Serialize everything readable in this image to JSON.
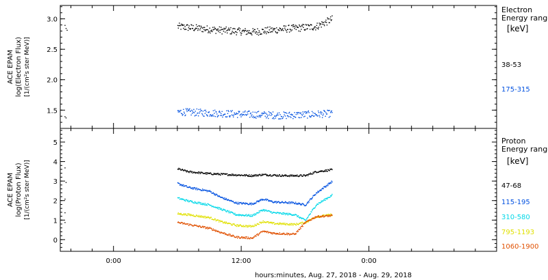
{
  "chart_data": [
    {
      "type": "scatter",
      "ylabel_lines": [
        "ACE EPAM",
        "log(Electron Flux)",
        "[1/(cm²s ster MeV)]"
      ],
      "ylim": [
        1.2,
        3.22
      ],
      "yticks": [
        "1.5",
        "2.0",
        "2.5",
        "3.0"
      ],
      "ytick_values": [
        1.5,
        2.0,
        2.5,
        3.0
      ],
      "legend_title": [
        "Electron",
        "Energy ranges",
        "[keV]"
      ],
      "series": [
        {
          "name": "38-53",
          "color": "#000000",
          "base": 2.85,
          "jitter": 0.06,
          "profile": [
            [
              6.0,
              2.88
            ],
            [
              10.0,
              2.82
            ],
            [
              13.0,
              2.79
            ],
            [
              16.0,
              2.84
            ],
            [
              19.0,
              2.88
            ],
            [
              20.5,
              3.0
            ]
          ]
        },
        {
          "name": "175-315",
          "color": "#0050e0",
          "base": 1.45,
          "jitter": 0.06,
          "profile": [
            [
              6.0,
              1.48
            ],
            [
              12.0,
              1.44
            ],
            [
              16.0,
              1.42
            ],
            [
              20.5,
              1.45
            ]
          ]
        }
      ]
    },
    {
      "type": "scatter",
      "ylabel_lines": [
        "ACE EPAM",
        "log(Proton Flux)",
        "[1/(cm²s ster MeV)]"
      ],
      "ylim": [
        -0.6,
        5.7
      ],
      "yticks": [
        "0",
        "1",
        "2",
        "3",
        "4",
        "5"
      ],
      "ytick_values": [
        0,
        1,
        2,
        3,
        4,
        5
      ],
      "legend_title": [
        "Proton",
        "Energy ranges",
        "[keV]"
      ],
      "series": [
        {
          "name": "47-68",
          "color": "#000000",
          "jitter": 0.05,
          "profile": [
            [
              6.0,
              3.65
            ],
            [
              7.0,
              3.5
            ],
            [
              9.0,
              3.4
            ],
            [
              13.0,
              3.3
            ],
            [
              14.0,
              3.35
            ],
            [
              16.0,
              3.3
            ],
            [
              18.0,
              3.3
            ],
            [
              19.0,
              3.5
            ],
            [
              20.5,
              3.6
            ]
          ]
        },
        {
          "name": "115-195",
          "color": "#0050e0",
          "jitter": 0.05,
          "profile": [
            [
              6.0,
              2.9
            ],
            [
              7.0,
              2.7
            ],
            [
              9.0,
              2.5
            ],
            [
              10.0,
              2.2
            ],
            [
              11.5,
              1.9
            ],
            [
              13.0,
              1.85
            ],
            [
              14.0,
              2.1
            ],
            [
              15.0,
              1.95
            ],
            [
              17.0,
              1.9
            ],
            [
              18.0,
              1.8
            ],
            [
              19.0,
              2.4
            ],
            [
              20.5,
              3.0
            ]
          ]
        },
        {
          "name": "310-580",
          "color": "#00d8e8",
          "jitter": 0.05,
          "profile": [
            [
              6.0,
              2.15
            ],
            [
              7.0,
              2.0
            ],
            [
              9.0,
              1.8
            ],
            [
              10.0,
              1.6
            ],
            [
              11.5,
              1.3
            ],
            [
              13.0,
              1.25
            ],
            [
              14.0,
              1.55
            ],
            [
              15.0,
              1.4
            ],
            [
              17.0,
              1.3
            ],
            [
              18.0,
              1.0
            ],
            [
              19.0,
              1.8
            ],
            [
              20.5,
              2.3
            ]
          ]
        },
        {
          "name": "795-1193",
          "color": "#e0e000",
          "jitter": 0.05,
          "profile": [
            [
              6.0,
              1.35
            ],
            [
              7.0,
              1.3
            ],
            [
              9.0,
              1.15
            ],
            [
              10.0,
              0.95
            ],
            [
              11.5,
              0.75
            ],
            [
              13.0,
              0.7
            ],
            [
              14.0,
              0.95
            ],
            [
              15.0,
              0.85
            ],
            [
              17.0,
              0.8
            ],
            [
              18.0,
              0.9
            ],
            [
              19.0,
              1.2
            ],
            [
              20.5,
              1.3
            ]
          ]
        },
        {
          "name": "1060-1900",
          "color": "#e05000",
          "jitter": 0.05,
          "profile": [
            [
              6.0,
              0.9
            ],
            [
              7.0,
              0.8
            ],
            [
              9.0,
              0.6
            ],
            [
              10.0,
              0.4
            ],
            [
              11.5,
              0.15
            ],
            [
              13.0,
              0.1
            ],
            [
              14.0,
              0.45
            ],
            [
              15.0,
              0.35
            ],
            [
              17.0,
              0.3
            ],
            [
              18.0,
              0.9
            ],
            [
              19.0,
              1.2
            ],
            [
              20.5,
              1.25
            ]
          ]
        }
      ]
    }
  ],
  "x_axis": {
    "label": "hours:minutes, Aug. 27, 2018 - Aug. 29, 2018",
    "xlim": [
      -5,
      36
    ],
    "ticks": [
      {
        "value": 0,
        "label": "0:00"
      },
      {
        "value": 12,
        "label": "12:00"
      },
      {
        "value": 24,
        "label": "0:00"
      }
    ]
  }
}
